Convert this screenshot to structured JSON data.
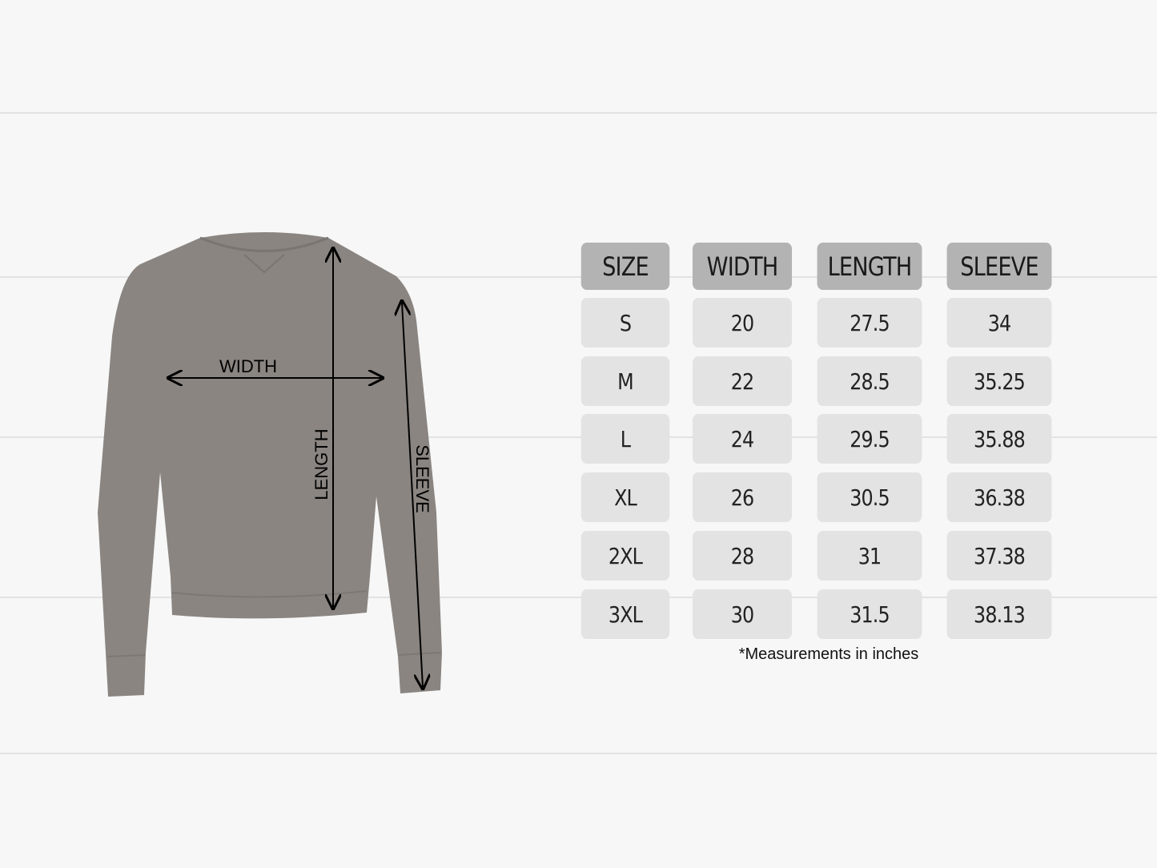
{
  "diagram": {
    "width_label": "WIDTH",
    "length_label": "LENGTH",
    "sleeve_label": "SLEEVE",
    "garment_color": "#8a8581"
  },
  "size_table": {
    "headers": [
      "SIZE",
      "WIDTH",
      "LENGTH",
      "SLEEVE"
    ],
    "rows": [
      [
        "S",
        "20",
        "27.5",
        "34"
      ],
      [
        "M",
        "22",
        "28.5",
        "35.25"
      ],
      [
        "L",
        "24",
        "29.5",
        "35.88"
      ],
      [
        "XL",
        "26",
        "30.5",
        "36.38"
      ],
      [
        "2XL",
        "28",
        "31",
        "37.38"
      ],
      [
        "3XL",
        "30",
        "31.5",
        "38.13"
      ]
    ],
    "footnote": "*Measurements in inches",
    "header_color": "#b4b3b4",
    "cell_color": "#e3e3e3"
  }
}
